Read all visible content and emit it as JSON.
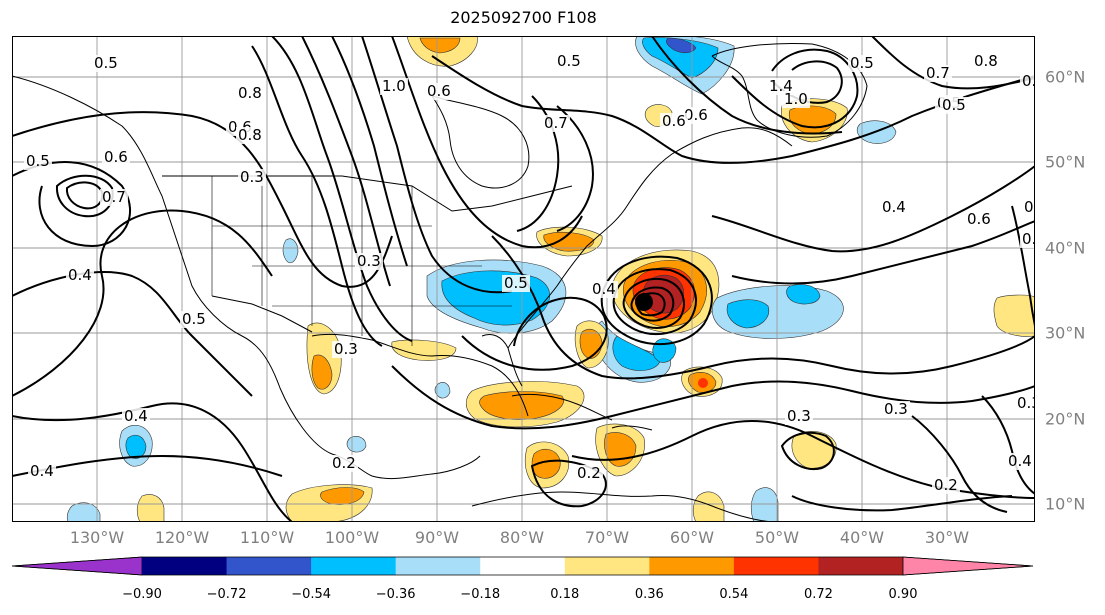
{
  "title": "2025092700 F108",
  "longitude_labels": [
    "130°W",
    "120°W",
    "110°W",
    "100°W",
    "90°W",
    "80°W",
    "70°W",
    "60°W",
    "50°W",
    "40°W",
    "30°W"
  ],
  "latitude_labels": [
    "60°N",
    "50°N",
    "40°N",
    "30°N",
    "20°N",
    "10°N"
  ],
  "colorbar": {
    "ticks": [
      "−0.90",
      "−0.72",
      "−0.54",
      "−0.36",
      "−0.18",
      "0.18",
      "0.36",
      "0.54",
      "0.72",
      "0.90"
    ],
    "colors": [
      "#9933cc",
      "#000080",
      "#3355cc",
      "#00bfff",
      "#a9def9",
      "#ffffff",
      "#ffe680",
      "#ff9900",
      "#ff3300",
      "#b22222",
      "#ff85a8"
    ]
  },
  "contour_labels": [
    "0.5",
    "1.0",
    "0.6",
    "0.5",
    "0.5",
    "0.7",
    "0.8",
    "0.6",
    "1.4",
    "1.0",
    "0.5",
    "0.6",
    "0.6",
    "0.5",
    "0.6",
    "0.7",
    "0.3",
    "0.4",
    "0.6",
    "0.5",
    "0.4",
    "0.4",
    "0.5",
    "0.3",
    "0.5",
    "0.4",
    "0.3",
    "0.4",
    "0.3",
    "0.3",
    "0.3",
    "0.4",
    "0.2",
    "0.2",
    "0.4",
    "0.2",
    "0.8",
    "0.7",
    "0.8",
    "0.6",
    "0.5"
  ],
  "fields": {
    "shaded_variable_range": [
      -0.9,
      0.9
    ],
    "marker": "storm-center-dot"
  }
}
